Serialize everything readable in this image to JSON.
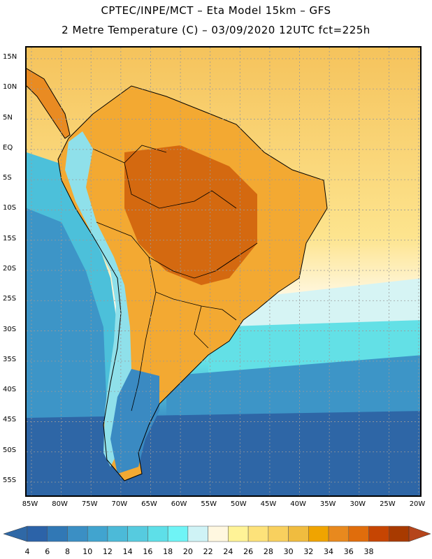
{
  "title_line1": "CPTEC/INPE/MCT –  Eta Model 15km – GFS",
  "title_line2": "2 Metre Temperature (C) – 03/09/2020 12UTC fct=225h",
  "lat_labels": [
    "15N",
    "10N",
    "5N",
    "EQ",
    "5S",
    "10S",
    "15S",
    "20S",
    "25S",
    "30S",
    "35S",
    "40S",
    "45S",
    "50S",
    "55S"
  ],
  "lon_labels": [
    "85W",
    "80W",
    "75W",
    "70W",
    "65W",
    "60W",
    "55W",
    "50W",
    "45W",
    "40W",
    "35W",
    "30W",
    "25W",
    "20W"
  ],
  "legend": {
    "values": [
      "4",
      "6",
      "8",
      "10",
      "12",
      "14",
      "16",
      "18",
      "20",
      "22",
      "24",
      "26",
      "28",
      "30",
      "32",
      "34",
      "36",
      "38"
    ],
    "colors": [
      "#2c63a8",
      "#3178b5",
      "#3b8fc4",
      "#41a4cf",
      "#4cbad8",
      "#56cbdf",
      "#5edfe8",
      "#6ff4f6",
      "#cff3f6",
      "#fff7e0",
      "#fff397",
      "#fde27a",
      "#f8d05e",
      "#f0bc3f",
      "#f0a400",
      "#e8891e",
      "#e06d0c",
      "#c64502",
      "#a83a00"
    ],
    "low_color": "#2f68a6",
    "high_color": "#b5451b"
  },
  "map_colors": {
    "ocean_cold": "#2e66a6",
    "ocean_cool": "#3d95c7",
    "ocean_mid": "#4cc0da",
    "ocean_warm": "#63e0e6",
    "ocean_pale": "#d6f4f4",
    "ocean_cream": "#fff7df",
    "ocean_yellow": "#fde48e",
    "ocean_tropical": "#f5c35c",
    "land_hot": "#d46910",
    "land_warm": "#e98b22",
    "land_mid": "#f3a932",
    "andes": "#8fe0ea",
    "patagonia": "#3a8ac2"
  }
}
